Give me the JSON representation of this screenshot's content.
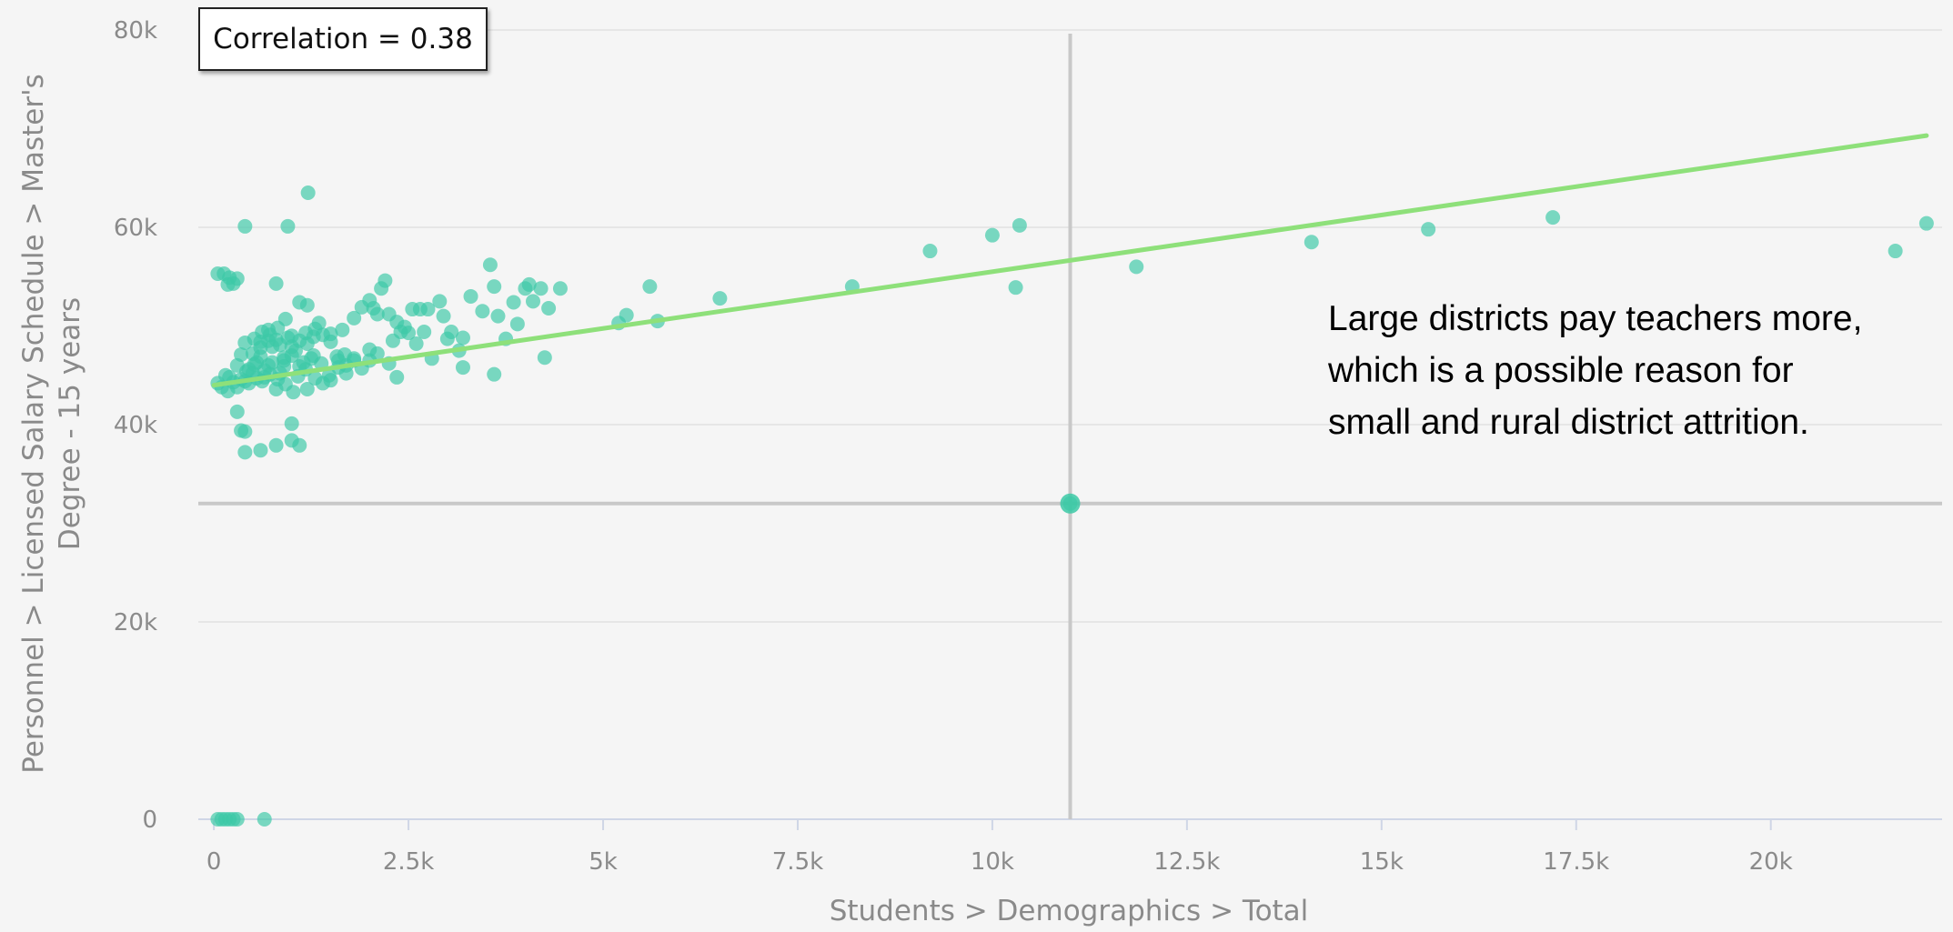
{
  "chart_data": {
    "type": "scatter",
    "title": "",
    "xlabel": "Students > Demographics > Total",
    "ylabel": "Personnel > Licensed Salary Schedule > Master's Degree - 15 years",
    "ylabel_lines": [
      "Personnel > Licensed Salary Schedule > Master's",
      "Degree - 15 years"
    ],
    "xlim": [
      -200,
      22200
    ],
    "ylim": [
      0,
      80000
    ],
    "x_ticks": [
      0,
      2500,
      5000,
      7500,
      10000,
      12500,
      15000,
      17500,
      20000
    ],
    "x_tick_labels": [
      "0",
      "2.5k",
      "5k",
      "7.5k",
      "10k",
      "12.5k",
      "15k",
      "17.5k",
      "20k"
    ],
    "y_ticks": [
      0,
      20000,
      40000,
      60000,
      80000
    ],
    "y_tick_labels": [
      "0",
      "20k",
      "40k",
      "60k",
      "80k"
    ],
    "grid": "horizontal",
    "correlation_label": "Correlation = 0.38",
    "annotation": "Large districts pay teachers more, which is a possible reason for small and rural district attrition.",
    "trend_line": {
      "x": [
        0,
        22000
      ],
      "y": [
        44000,
        69300
      ],
      "color": "#8ee07a"
    },
    "crosshair": {
      "x": 11000,
      "y": 32000
    },
    "point_color": "#3cc9a6",
    "points": [
      [
        50,
        55300
      ],
      [
        130,
        55300
      ],
      [
        200,
        54900
      ],
      [
        300,
        54800
      ],
      [
        180,
        54200
      ],
      [
        250,
        54300
      ],
      [
        400,
        60100
      ],
      [
        950,
        60100
      ],
      [
        1210,
        63500
      ],
      [
        800,
        54300
      ],
      [
        1100,
        52400
      ],
      [
        1200,
        52100
      ],
      [
        1350,
        50300
      ],
      [
        1500,
        49200
      ],
      [
        1650,
        49600
      ],
      [
        1800,
        50800
      ],
      [
        1900,
        51900
      ],
      [
        2000,
        52600
      ],
      [
        2050,
        51800
      ],
      [
        2100,
        51200
      ],
      [
        2150,
        53800
      ],
      [
        2200,
        54600
      ],
      [
        2250,
        51200
      ],
      [
        2350,
        50400
      ],
      [
        2450,
        49900
      ],
      [
        2550,
        51700
      ],
      [
        2650,
        51700
      ],
      [
        2750,
        51700
      ],
      [
        2900,
        52500
      ],
      [
        2950,
        51000
      ],
      [
        3050,
        49400
      ],
      [
        3200,
        48800
      ],
      [
        3300,
        53000
      ],
      [
        3450,
        51500
      ],
      [
        3550,
        56200
      ],
      [
        3600,
        54000
      ],
      [
        3650,
        51000
      ],
      [
        3750,
        48700
      ],
      [
        3850,
        52400
      ],
      [
        3900,
        50200
      ],
      [
        4000,
        53800
      ],
      [
        4050,
        54200
      ],
      [
        4100,
        52500
      ],
      [
        4200,
        53800
      ],
      [
        4300,
        51800
      ],
      [
        4450,
        53800
      ],
      [
        4250,
        46800
      ],
      [
        3600,
        45100
      ],
      [
        3200,
        45800
      ],
      [
        2350,
        44800
      ],
      [
        2250,
        46200
      ],
      [
        2000,
        47600
      ],
      [
        1900,
        45700
      ],
      [
        1800,
        46500
      ],
      [
        1700,
        46000
      ],
      [
        1600,
        45800
      ],
      [
        1500,
        44500
      ],
      [
        1400,
        44200
      ],
      [
        1300,
        44700
      ],
      [
        1200,
        43600
      ],
      [
        1100,
        45900
      ],
      [
        1050,
        47500
      ],
      [
        1000,
        47000
      ],
      [
        950,
        48800
      ],
      [
        900,
        46500
      ],
      [
        850,
        45200
      ],
      [
        800,
        43600
      ],
      [
        750,
        47900
      ],
      [
        700,
        46000
      ],
      [
        650,
        44800
      ],
      [
        600,
        48400
      ],
      [
        550,
        46300
      ],
      [
        500,
        47200
      ],
      [
        450,
        45600
      ],
      [
        400,
        44400
      ],
      [
        350,
        47100
      ],
      [
        300,
        46000
      ],
      [
        250,
        44300
      ],
      [
        200,
        44800
      ],
      [
        150,
        45000
      ],
      [
        100,
        43800
      ],
      [
        50,
        44200
      ],
      [
        180,
        43400
      ],
      [
        400,
        48300
      ],
      [
        500,
        45200
      ],
      [
        600,
        47800
      ],
      [
        700,
        49600
      ],
      [
        800,
        48600
      ],
      [
        900,
        46800
      ],
      [
        1000,
        49000
      ],
      [
        1100,
        48500
      ],
      [
        1200,
        48200
      ],
      [
        1300,
        49700
      ],
      [
        1400,
        49100
      ],
      [
        1500,
        48400
      ],
      [
        1600,
        46500
      ],
      [
        1700,
        45200
      ],
      [
        1800,
        46700
      ],
      [
        2000,
        46500
      ],
      [
        2100,
        47200
      ],
      [
        2300,
        48500
      ],
      [
        2400,
        49400
      ],
      [
        2500,
        49300
      ],
      [
        2600,
        48200
      ],
      [
        2700,
        49400
      ],
      [
        2800,
        46700
      ],
      [
        3000,
        48700
      ],
      [
        3150,
        47500
      ],
      [
        700,
        48500
      ],
      [
        850,
        48100
      ],
      [
        1000,
        47900
      ],
      [
        1150,
        46300
      ],
      [
        1250,
        46700
      ],
      [
        600,
        46900
      ],
      [
        750,
        46300
      ],
      [
        900,
        45900
      ],
      [
        650,
        45500
      ],
      [
        550,
        44700
      ],
      [
        450,
        44200
      ],
      [
        350,
        44600
      ],
      [
        300,
        43800
      ],
      [
        420,
        45400
      ],
      [
        520,
        46100
      ],
      [
        620,
        44400
      ],
      [
        720,
        45100
      ],
      [
        820,
        44600
      ],
      [
        920,
        44100
      ],
      [
        1020,
        43300
      ],
      [
        1080,
        44900
      ],
      [
        1180,
        45600
      ],
      [
        1280,
        47000
      ],
      [
        1380,
        46200
      ],
      [
        1480,
        45000
      ],
      [
        1580,
        46900
      ],
      [
        1680,
        47100
      ],
      [
        1280,
        48900
      ],
      [
        1180,
        49300
      ],
      [
        920,
        50700
      ],
      [
        820,
        49800
      ],
      [
        720,
        49100
      ],
      [
        620,
        49400
      ],
      [
        520,
        48700
      ],
      [
        300,
        41300
      ],
      [
        400,
        39300
      ],
      [
        350,
        39400
      ],
      [
        600,
        37400
      ],
      [
        800,
        37900
      ],
      [
        1000,
        38400
      ],
      [
        1100,
        37900
      ],
      [
        1000,
        40100
      ],
      [
        400,
        37200
      ],
      [
        5200,
        50300
      ],
      [
        5300,
        51100
      ],
      [
        5600,
        54000
      ],
      [
        5700,
        50500
      ],
      [
        6500,
        52800
      ],
      [
        8200,
        54000
      ],
      [
        9200,
        57600
      ],
      [
        10000,
        59200
      ],
      [
        10350,
        60200
      ],
      [
        10300,
        53900
      ],
      [
        11850,
        56000
      ],
      [
        14100,
        58500
      ],
      [
        15600,
        59800
      ],
      [
        17200,
        61000
      ],
      [
        21600,
        57600
      ],
      [
        22000,
        60400
      ],
      [
        11000,
        32000
      ],
      [
        50,
        0
      ],
      [
        100,
        0
      ],
      [
        150,
        0
      ],
      [
        200,
        0
      ],
      [
        250,
        0
      ],
      [
        300,
        0
      ],
      [
        650,
        0
      ]
    ]
  }
}
